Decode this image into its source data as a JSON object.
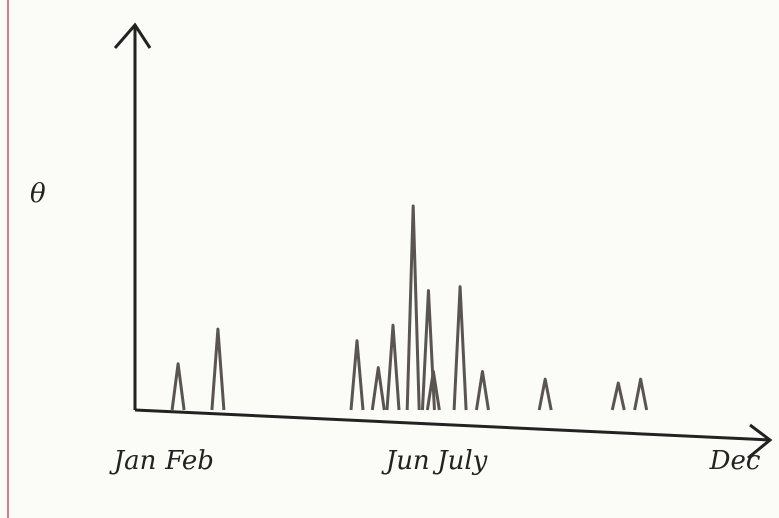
{
  "chart_data": {
    "type": "spike",
    "ylabel": "θ",
    "x": [
      1.79,
      2.52,
      5.07,
      5.46,
      5.73,
      6.1,
      6.38,
      6.47,
      6.96,
      7.37,
      8.52,
      9.86,
      10.27
    ],
    "values": [
      1.2,
      2.1,
      1.8,
      1.1,
      2.2,
      5.3,
      3.1,
      1.0,
      3.2,
      1.0,
      0.8,
      0.7,
      0.8
    ],
    "color": "#5a5550",
    "xlim": [
      1,
      12
    ],
    "ylim": [
      0,
      10
    ],
    "xticks": [
      {
        "value": 1,
        "label": "Jan"
      },
      {
        "value": 2,
        "label": "Feb"
      },
      {
        "value": 6,
        "label": "Jun"
      },
      {
        "value": 7,
        "label": "July"
      },
      {
        "value": 12,
        "label": "Dec"
      }
    ],
    "grid": false
  }
}
